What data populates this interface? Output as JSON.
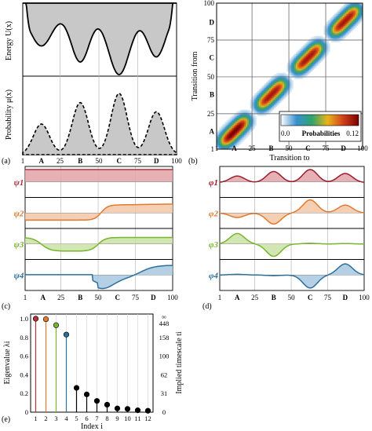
{
  "panels": {
    "a": {
      "label": "(a)",
      "upper_ylabel": "Energy  U(x)",
      "lower_ylabel": "Probability  μ(x)",
      "xticks": [
        "1",
        "A",
        "25",
        "B",
        "50",
        "C",
        "75",
        "D",
        "100"
      ]
    },
    "b": {
      "label": "(b)",
      "ylabel": "Transition from",
      "xlabel": "Transition  to",
      "xticks": [
        "1",
        "A",
        "25",
        "B",
        "50",
        "C",
        "75",
        "D",
        "100"
      ],
      "yticks": [
        "100",
        "D",
        "75",
        "C",
        "50",
        "B",
        "25",
        "A",
        "1"
      ],
      "colorbar_title": "Probabilities",
      "colorbar_min": "0.0",
      "colorbar_max": "0.12"
    },
    "c": {
      "label": "(c)",
      "rows": [
        "ψ1",
        "ψ2",
        "ψ3",
        "ψ4"
      ],
      "xticks": [
        "1",
        "A",
        "25",
        "B",
        "50",
        "C",
        "75",
        "D",
        "100"
      ]
    },
    "d": {
      "label": "(d)",
      "rows": [
        "φ1",
        "φ2",
        "φ3",
        "φ4"
      ],
      "xticks": [
        "1",
        "A",
        "25",
        "B",
        "50",
        "C",
        "75",
        "D",
        "100"
      ]
    },
    "e": {
      "label": "(e)",
      "ylabel": "Eigenvalue  λi",
      "ylabel_right": "Implied  timescale  ti",
      "xlabel": "Index  i",
      "yticks_left": [
        "0",
        "0.2",
        "0.4",
        "0.6",
        "0.8",
        "1.0"
      ],
      "yticks_right": [
        "0",
        "31",
        "62",
        "100",
        "158",
        "448",
        "∞"
      ]
    }
  },
  "chart_data": [
    {
      "panel": "a-upper",
      "type": "line",
      "xlim": [
        1,
        100
      ],
      "wells": [
        {
          "name": "A",
          "x": 13
        },
        {
          "name": "B",
          "x": 38
        },
        {
          "name": "C",
          "x": 63
        },
        {
          "name": "D",
          "x": 87
        }
      ],
      "filled": true,
      "fill_color": "#c8c8c8"
    },
    {
      "panel": "a-lower",
      "type": "line",
      "style": "dashed",
      "xlim": [
        1,
        100
      ],
      "peaks": [
        {
          "name": "A",
          "x": 13,
          "height": 0.5
        },
        {
          "name": "B",
          "x": 38,
          "height": 0.85
        },
        {
          "name": "C",
          "x": 63,
          "height": 1.0
        },
        {
          "name": "D",
          "x": 87,
          "height": 0.7
        }
      ]
    },
    {
      "panel": "b",
      "type": "heatmap",
      "xlim": [
        1,
        100
      ],
      "ylim": [
        1,
        100
      ],
      "zlim": [
        0.0,
        0.12
      ],
      "blocks": [
        {
          "name": "A",
          "from": [
            1,
            25
          ],
          "to": [
            1,
            25
          ],
          "peak": 0.12
        },
        {
          "name": "B",
          "from": [
            26,
            50
          ],
          "to": [
            26,
            50
          ],
          "peak": 0.11
        },
        {
          "name": "C",
          "from": [
            51,
            75
          ],
          "to": [
            51,
            75
          ],
          "peak": 0.11
        },
        {
          "name": "D",
          "from": [
            76,
            100
          ],
          "to": [
            76,
            100
          ],
          "peak": 0.11
        }
      ],
      "colorbar_colors": [
        "#ffffff",
        "#3a8fd0",
        "#2fa36b",
        "#e9b41a",
        "#d2401c",
        "#7a0000"
      ]
    },
    {
      "panel": "c",
      "type": "line",
      "xlim": [
        1,
        100
      ],
      "series": [
        {
          "name": "ψ1",
          "color": "#b1343c",
          "fill": "#e0a3a8"
        },
        {
          "name": "ψ2",
          "color": "#e07a2e",
          "fill": "#f2c7a6"
        },
        {
          "name": "ψ3",
          "color": "#77b52d",
          "fill": "#c9e2a6"
        },
        {
          "name": "ψ4",
          "color": "#2b6f9b",
          "fill": "#a8c8df"
        }
      ]
    },
    {
      "panel": "d",
      "type": "line",
      "xlim": [
        1,
        100
      ],
      "series": [
        {
          "name": "φ1",
          "color": "#9b1b2a",
          "fill": "#e0a3a8"
        },
        {
          "name": "φ2",
          "color": "#e07a2e",
          "fill": "#f2c7a6"
        },
        {
          "name": "φ3",
          "color": "#77b52d",
          "fill": "#c9e2a6"
        },
        {
          "name": "φ4",
          "color": "#2b6f9b",
          "fill": "#a8c8df"
        }
      ]
    },
    {
      "panel": "e",
      "type": "scatter",
      "style": "stem",
      "x": [
        1,
        2,
        3,
        4,
        5,
        6,
        7,
        8,
        9,
        10,
        11,
        12
      ],
      "values": [
        1.0,
        0.995,
        0.93,
        0.83,
        0.26,
        0.19,
        0.12,
        0.08,
        0.04,
        0.035,
        0.02,
        0.015
      ],
      "colors": [
        "#b1343c",
        "#e07a2e",
        "#77b52d",
        "#2b6f9b",
        "#000000",
        "#000000",
        "#000000",
        "#000000",
        "#000000",
        "#000000",
        "#000000",
        "#000000"
      ],
      "ylim": [
        0,
        1.05
      ],
      "xlim": [
        0.5,
        12.5
      ]
    }
  ]
}
